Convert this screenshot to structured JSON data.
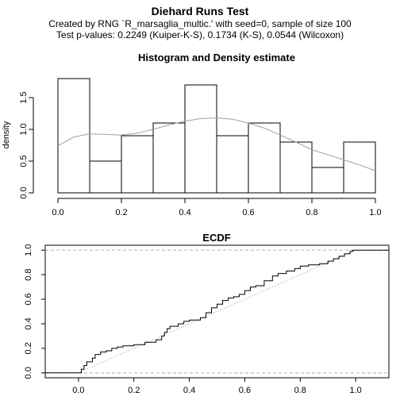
{
  "figure": {
    "title": "Diehard Runs Test",
    "subtitle1": "Created by RNG `R_marsaglia_multic.' with seed=0, sample of size 100",
    "subtitle2": "Test p-values:  0.2249  (Kuiper-K-S),   0.1734  (K-S),   0.0544   (Wilcoxon)"
  },
  "chart_data": [
    {
      "type": "bar",
      "title": "Histogram and Density estimate",
      "xlabel": "",
      "ylabel": "density",
      "bins": [
        [
          0.0,
          0.1
        ],
        [
          0.1,
          0.2
        ],
        [
          0.2,
          0.3
        ],
        [
          0.3,
          0.4
        ],
        [
          0.4,
          0.5
        ],
        [
          0.5,
          0.6
        ],
        [
          0.6,
          0.7
        ],
        [
          0.7,
          0.8
        ],
        [
          0.8,
          0.9
        ],
        [
          0.9,
          1.0
        ]
      ],
      "values": [
        1.8,
        0.5,
        0.9,
        1.1,
        1.7,
        0.9,
        1.1,
        0.8,
        0.4,
        0.8
      ],
      "density_curve": {
        "x": [
          0.0,
          0.05,
          0.1,
          0.15,
          0.2,
          0.25,
          0.3,
          0.35,
          0.4,
          0.45,
          0.5,
          0.55,
          0.6,
          0.65,
          0.7,
          0.75,
          0.8,
          0.85,
          0.9,
          0.95,
          1.0
        ],
        "y": [
          0.74,
          0.88,
          0.93,
          0.92,
          0.91,
          0.94,
          1.0,
          1.07,
          1.13,
          1.17,
          1.18,
          1.16,
          1.1,
          1.02,
          0.91,
          0.8,
          0.68,
          0.6,
          0.52,
          0.44,
          0.35
        ]
      },
      "xlim": [
        0,
        1
      ],
      "ylim": [
        0,
        1.8
      ],
      "xticks": [
        "0.0",
        "0.2",
        "0.4",
        "0.6",
        "0.8",
        "1.0"
      ],
      "yticks": [
        "0.0",
        "0.5",
        "1.0",
        "1.5"
      ],
      "colors": {
        "bar_fill": "#ffffff",
        "bar_stroke": "#000000",
        "density": "#a0a0a0"
      }
    },
    {
      "type": "line",
      "title": "ECDF",
      "xlabel": "",
      "ylabel": "",
      "xlim": [
        -0.12,
        1.12
      ],
      "ylim": [
        -0.04,
        1.04
      ],
      "xticks": [
        "0.0",
        "0.2",
        "0.4",
        "0.6",
        "0.8",
        "1.0"
      ],
      "yticks": [
        "0.0",
        "0.2",
        "0.4",
        "0.6",
        "0.8",
        "1.0"
      ],
      "ecdf_points": [
        [
          -0.12,
          0.0
        ],
        [
          0.0,
          0.0
        ],
        [
          0.01,
          0.03
        ],
        [
          0.02,
          0.06
        ],
        [
          0.03,
          0.09
        ],
        [
          0.05,
          0.12
        ],
        [
          0.06,
          0.15
        ],
        [
          0.08,
          0.17
        ],
        [
          0.1,
          0.18
        ],
        [
          0.12,
          0.2
        ],
        [
          0.14,
          0.21
        ],
        [
          0.16,
          0.22
        ],
        [
          0.2,
          0.23
        ],
        [
          0.24,
          0.25
        ],
        [
          0.28,
          0.27
        ],
        [
          0.3,
          0.3
        ],
        [
          0.31,
          0.33
        ],
        [
          0.32,
          0.36
        ],
        [
          0.33,
          0.38
        ],
        [
          0.36,
          0.4
        ],
        [
          0.38,
          0.42
        ],
        [
          0.4,
          0.43
        ],
        [
          0.44,
          0.45
        ],
        [
          0.46,
          0.49
        ],
        [
          0.48,
          0.53
        ],
        [
          0.5,
          0.56
        ],
        [
          0.52,
          0.59
        ],
        [
          0.54,
          0.61
        ],
        [
          0.56,
          0.62
        ],
        [
          0.58,
          0.64
        ],
        [
          0.6,
          0.67
        ],
        [
          0.62,
          0.7
        ],
        [
          0.64,
          0.71
        ],
        [
          0.67,
          0.75
        ],
        [
          0.7,
          0.79
        ],
        [
          0.72,
          0.81
        ],
        [
          0.75,
          0.83
        ],
        [
          0.78,
          0.85
        ],
        [
          0.8,
          0.87
        ],
        [
          0.83,
          0.88
        ],
        [
          0.87,
          0.89
        ],
        [
          0.9,
          0.91
        ],
        [
          0.92,
          0.93
        ],
        [
          0.94,
          0.95
        ],
        [
          0.96,
          0.97
        ],
        [
          0.98,
          0.99
        ],
        [
          0.99,
          1.0
        ],
        [
          1.12,
          1.0
        ]
      ],
      "reference_line": {
        "from": [
          0.0,
          0.0
        ],
        "to": [
          1.0,
          1.0
        ]
      },
      "horizontal_guides": [
        0.0,
        1.0
      ],
      "colors": {
        "ecdf": "#000000",
        "reference": "#a0a0a0",
        "guides": "#b0b0b0"
      }
    }
  ]
}
